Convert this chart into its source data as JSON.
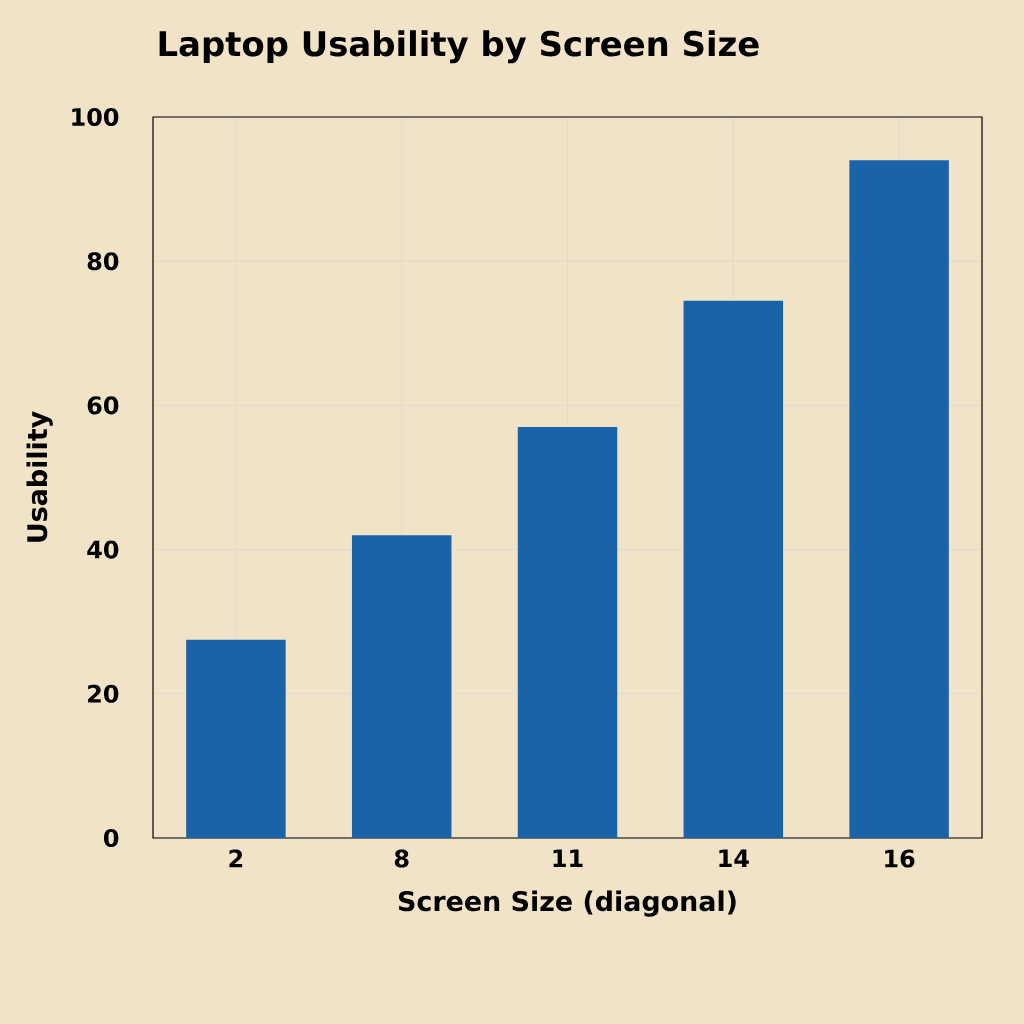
{
  "chart_data": {
    "type": "bar",
    "title": "Laptop Usability by Screen Size",
    "xlabel": "Screen Size (diagonal)",
    "ylabel": "Usability",
    "categories": [
      "2",
      "8",
      "11",
      "14",
      "16"
    ],
    "values": [
      27.5,
      42,
      57,
      74.5,
      94
    ],
    "color": "#1a63a8",
    "ylim": [
      0,
      100
    ],
    "yticks": [
      0,
      20,
      40,
      60,
      80,
      100
    ],
    "grid": true
  }
}
